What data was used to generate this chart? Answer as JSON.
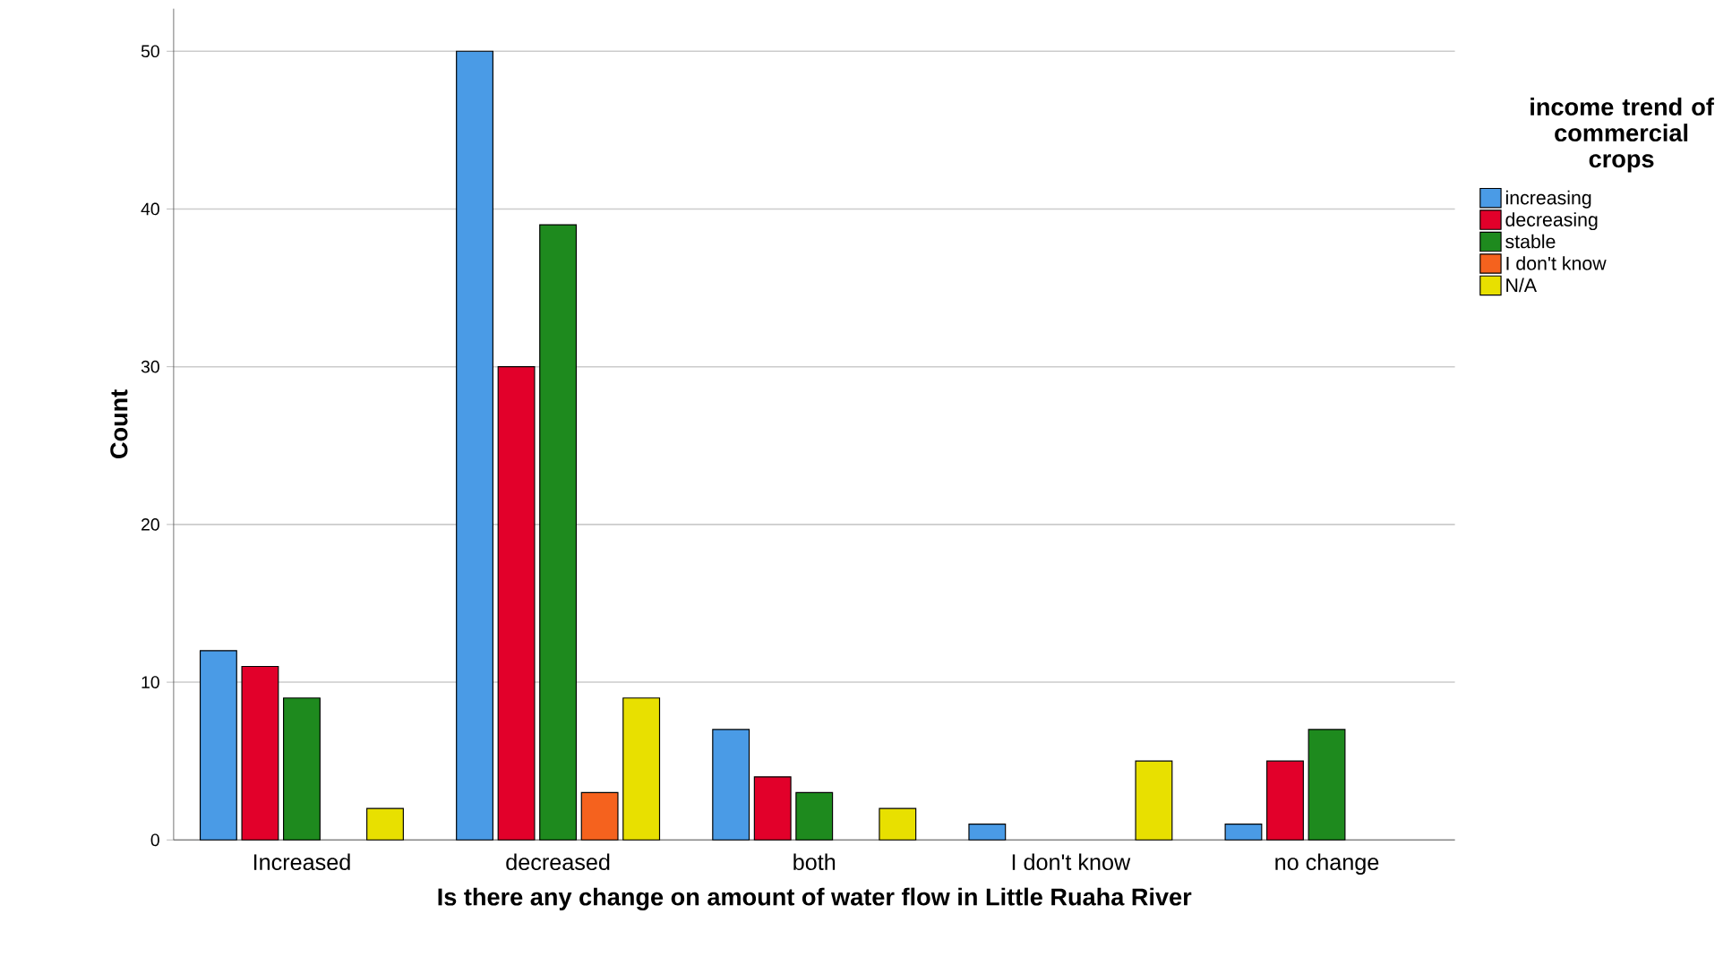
{
  "chart_data": {
    "type": "bar",
    "categories": [
      "Increased",
      "decreased",
      "both",
      "I don't know",
      "no change"
    ],
    "series": [
      {
        "name": "increasing",
        "color": "#4a9be6",
        "values": [
          12,
          50,
          7,
          1,
          1
        ]
      },
      {
        "name": "decreasing",
        "color": "#e2002a",
        "values": [
          11,
          30,
          4,
          null,
          5
        ]
      },
      {
        "name": "stable",
        "color": "#1e8a1e",
        "values": [
          9,
          39,
          3,
          null,
          7
        ]
      },
      {
        "name": "I don't know",
        "color": "#f5621e",
        "values": [
          null,
          3,
          null,
          null,
          null
        ]
      },
      {
        "name": "N/A",
        "color": "#e8e000",
        "values": [
          2,
          9,
          2,
          5,
          null
        ]
      }
    ],
    "xlabel": "Is there any change on amount of water flow in Little Ruaha River",
    "ylabel": "Count",
    "legend_title": "income trend of commercial crops",
    "ylim": [
      0,
      52.7
    ],
    "yticks": [
      0,
      10,
      20,
      30,
      40,
      50
    ],
    "grid": "y",
    "legend": "right"
  }
}
